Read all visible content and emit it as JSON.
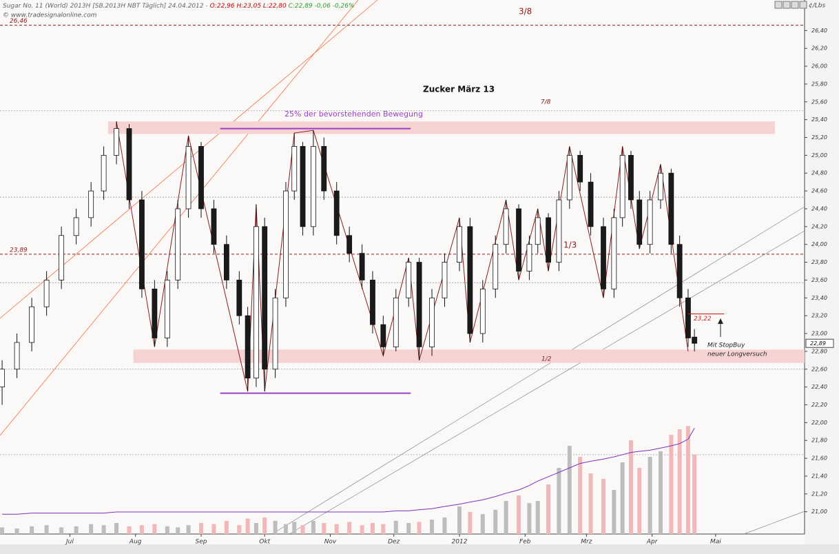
{
  "header": {
    "parts": [
      {
        "text": "Sugar No. 11 (World) 2013H [SB.2013H NBT Täglich] 24.04.2012 - ",
        "color": "#666666"
      },
      {
        "text": "O:22,96",
        "color": "#c00000"
      },
      {
        "text": " H:23,05 L:22,80 ",
        "color": "#c00000"
      },
      {
        "text": "C:22,89 -0,06 -0,26%",
        "color": "#2a9a2a"
      }
    ],
    "source": "© www.tradesignalonline.com"
  },
  "annotations": {
    "title": "Zucker März 13",
    "fib_3_8": "3/8",
    "fib_7_8": "7/8",
    "fib_1_3": "1/3",
    "fib_1_2": "1/2",
    "move": "25% der bevorstehenden Bewegung",
    "note_1": "Mit StopBuy",
    "note_2": "neuer Longversuch"
  },
  "chart_data": {
    "type": "candlestick",
    "unit": "¢/Lbs",
    "x": [
      -32,
      -25,
      -18,
      -11,
      -4,
      3,
      10,
      16,
      22,
      28,
      34,
      40,
      46,
      51,
      56,
      62,
      68,
      74,
      80,
      84,
      88,
      92,
      97,
      102,
      106,
      110,
      115,
      120,
      126,
      132,
      138,
      143,
      148,
      154,
      160,
      165,
      171,
      177,
      184,
      189,
      195,
      201,
      206,
      212,
      217,
      221,
      226,
      231,
      236,
      241,
      246,
      252,
      257,
      261,
      265,
      269,
      274,
      279,
      284,
      288,
      292,
      295
    ],
    "open": [
      22.4,
      22.6,
      22.9,
      23.3,
      23.6,
      24.1,
      24.3,
      24.6,
      25.0,
      25.3,
      24.5,
      23.5,
      22.95,
      23.6,
      24.4,
      25.1,
      24.4,
      24.0,
      23.6,
      23.2,
      22.5,
      24.2,
      22.6,
      23.4,
      24.6,
      25.1,
      24.2,
      25.1,
      24.6,
      24.1,
      23.9,
      23.6,
      23.1,
      22.85,
      23.4,
      23.8,
      22.85,
      23.4,
      23.8,
      24.2,
      23.0,
      23.5,
      24.0,
      24.4,
      23.7,
      24.0,
      24.3,
      23.8,
      24.5,
      25.0,
      24.7,
      24.2,
      23.5,
      24.3,
      25.0,
      24.5,
      24.0,
      24.5,
      24.8,
      24.0,
      23.4,
      22.96
    ],
    "high": [
      22.7,
      23.0,
      23.4,
      23.7,
      24.2,
      24.4,
      24.7,
      25.1,
      25.38,
      25.35,
      24.6,
      23.6,
      23.7,
      24.5,
      25.22,
      25.15,
      24.5,
      24.1,
      23.7,
      23.3,
      24.45,
      24.3,
      23.5,
      24.7,
      25.25,
      25.15,
      25.28,
      25.2,
      24.7,
      24.2,
      24.0,
      23.7,
      23.2,
      23.5,
      23.85,
      23.85,
      23.5,
      23.9,
      24.3,
      24.3,
      23.6,
      24.1,
      24.5,
      24.45,
      24.1,
      24.4,
      24.35,
      24.6,
      25.1,
      25.05,
      24.8,
      24.3,
      24.4,
      25.1,
      25.05,
      24.6,
      24.6,
      24.9,
      24.85,
      24.1,
      23.5,
      23.05
    ],
    "low": [
      22.2,
      22.5,
      22.8,
      23.2,
      23.5,
      24.0,
      24.2,
      24.5,
      24.9,
      24.4,
      23.4,
      22.85,
      22.85,
      23.5,
      24.3,
      24.3,
      23.9,
      23.5,
      23.1,
      22.35,
      22.4,
      22.35,
      22.5,
      23.3,
      24.5,
      24.1,
      24.1,
      24.5,
      24.0,
      23.8,
      23.5,
      23.0,
      22.75,
      22.8,
      23.3,
      22.7,
      22.75,
      23.3,
      23.7,
      22.9,
      22.9,
      23.4,
      23.9,
      23.6,
      23.6,
      23.9,
      23.7,
      23.7,
      24.4,
      24.6,
      24.1,
      23.4,
      23.4,
      24.2,
      24.4,
      23.95,
      23.9,
      24.4,
      23.9,
      23.3,
      22.85,
      22.8
    ],
    "close": [
      22.6,
      22.9,
      23.3,
      23.6,
      24.1,
      24.3,
      24.6,
      25.0,
      25.3,
      24.5,
      23.5,
      22.95,
      23.6,
      24.4,
      25.1,
      24.4,
      24.0,
      23.6,
      23.2,
      22.5,
      24.2,
      22.6,
      23.4,
      24.6,
      25.1,
      24.2,
      25.1,
      24.6,
      24.1,
      23.9,
      23.6,
      23.1,
      22.85,
      23.4,
      23.8,
      22.85,
      23.4,
      23.8,
      24.2,
      23.0,
      23.5,
      24.0,
      24.4,
      23.7,
      24.0,
      24.3,
      23.8,
      24.5,
      25.0,
      24.7,
      24.2,
      23.5,
      24.3,
      25.0,
      24.5,
      24.0,
      24.5,
      24.8,
      24.0,
      23.4,
      22.95,
      22.89
    ],
    "last": {
      "value": 22.89,
      "label": "22,89"
    },
    "volume": [
      6,
      5,
      7,
      8,
      6,
      7,
      9,
      8,
      10,
      7,
      8,
      9,
      7,
      6,
      8,
      10,
      9,
      12,
      8,
      14,
      10,
      15,
      12,
      9,
      11,
      8,
      12,
      10,
      9,
      11,
      8,
      10,
      9,
      12,
      10,
      11,
      13,
      15,
      25,
      20,
      18,
      22,
      30,
      35,
      28,
      30,
      45,
      60,
      80,
      70,
      55,
      50,
      40,
      65,
      85,
      60,
      70,
      75,
      90,
      95,
      98,
      72
    ],
    "volume_avg": [
      18,
      18,
      19,
      19,
      19,
      19,
      19,
      19,
      20,
      20,
      20,
      20,
      20,
      20,
      20,
      20,
      20,
      20,
      20,
      20,
      20,
      20,
      20,
      20,
      20,
      20,
      20,
      20,
      20,
      20,
      20,
      20,
      20,
      21,
      21,
      22,
      23,
      25,
      27,
      29,
      31,
      34,
      37,
      40,
      44,
      48,
      52,
      56,
      60,
      64,
      66,
      68,
      70,
      72,
      74,
      75,
      76,
      78,
      80,
      82,
      86,
      96
    ],
    "volume_lim": [
      0,
      100
    ],
    "up_color": "#ffffff",
    "down_color": "#1a1a1a",
    "vol_up_color": "#bdbdbd",
    "vol_down_color": "#f0b8b8",
    "avg_color": "#7a2fc0",
    "xlim": [
      -33,
      347
    ],
    "xticks": [
      {
        "value": 0,
        "label": "Jul"
      },
      {
        "value": 31,
        "label": "Aug"
      },
      {
        "value": 62,
        "label": "Sep"
      },
      {
        "value": 92,
        "label": "Okt"
      },
      {
        "value": 123,
        "label": "Nov"
      },
      {
        "value": 153,
        "label": "Dez"
      },
      {
        "value": 184,
        "label": "2012"
      },
      {
        "value": 215,
        "label": "Feb"
      },
      {
        "value": 244,
        "label": "Mrz"
      },
      {
        "value": 275,
        "label": "Apr"
      },
      {
        "value": 305,
        "label": "Mai"
      }
    ],
    "ylim": [
      20.75,
      26.65
    ],
    "yticks": [
      {
        "value": 21.0,
        "label": "21,00"
      },
      {
        "value": 21.2,
        "label": "21,20"
      },
      {
        "value": 21.4,
        "label": "21,40"
      },
      {
        "value": 21.6,
        "label": "21,60"
      },
      {
        "value": 21.8,
        "label": "21,80"
      },
      {
        "value": 22.0,
        "label": "22,00"
      },
      {
        "value": 22.2,
        "label": "22,20"
      },
      {
        "value": 22.4,
        "label": "22,40"
      },
      {
        "value": 22.6,
        "label": "22,60"
      },
      {
        "value": 22.8,
        "label": "22,80"
      },
      {
        "value": 23.0,
        "label": "23,00"
      },
      {
        "value": 23.2,
        "label": "23,20"
      },
      {
        "value": 23.4,
        "label": "23,40"
      },
      {
        "value": 23.6,
        "label": "23,60"
      },
      {
        "value": 23.8,
        "label": "23,80"
      },
      {
        "value": 24.0,
        "label": "24,00"
      },
      {
        "value": 24.2,
        "label": "24,20"
      },
      {
        "value": 24.4,
        "label": "24,40"
      },
      {
        "value": 24.6,
        "label": "24,60"
      },
      {
        "value": 24.8,
        "label": "24,80"
      },
      {
        "value": 25.0,
        "label": "25,00"
      },
      {
        "value": 25.2,
        "label": "25,20"
      },
      {
        "value": 25.4,
        "label": "25,40"
      },
      {
        "value": 25.6,
        "label": "25,60"
      },
      {
        "value": 25.8,
        "label": "25,80"
      },
      {
        "value": 26.0,
        "label": "26,00"
      },
      {
        "value": 26.2,
        "label": "26,20"
      },
      {
        "value": 26.4,
        "label": "26,40"
      }
    ],
    "levels": [
      25.5,
      24.53,
      23.57,
      22.6,
      21.64
    ],
    "marked_levels": [
      {
        "value": 26.46,
        "label": "26,46"
      },
      {
        "value": 23.89,
        "label": "23,89"
      }
    ],
    "bands": [
      {
        "low": 25.24,
        "high": 25.38,
        "x": [
          18,
          333
        ]
      },
      {
        "low": 22.67,
        "high": 22.82,
        "x": [
          30,
          347
        ]
      }
    ],
    "purple_lines": [
      {
        "value": 25.3,
        "x": [
          71,
          161
        ]
      },
      {
        "value": 22.33,
        "x": [
          71,
          161
        ]
      }
    ],
    "stop": {
      "value": 23.22,
      "label": "23,22",
      "x": [
        292,
        309
      ]
    },
    "zigzag": {
      "x": [
        22,
        40,
        56,
        84,
        88,
        92,
        106,
        115,
        148,
        160,
        165,
        184,
        189,
        206,
        212,
        221,
        226,
        236,
        252,
        261,
        269,
        279,
        292
      ],
      "y": [
        25.38,
        22.85,
        25.22,
        22.35,
        24.45,
        22.35,
        25.25,
        25.28,
        22.75,
        23.85,
        22.7,
        24.3,
        22.9,
        24.5,
        23.6,
        24.4,
        23.7,
        25.1,
        23.4,
        25.1,
        23.95,
        24.9,
        22.8
      ]
    }
  }
}
